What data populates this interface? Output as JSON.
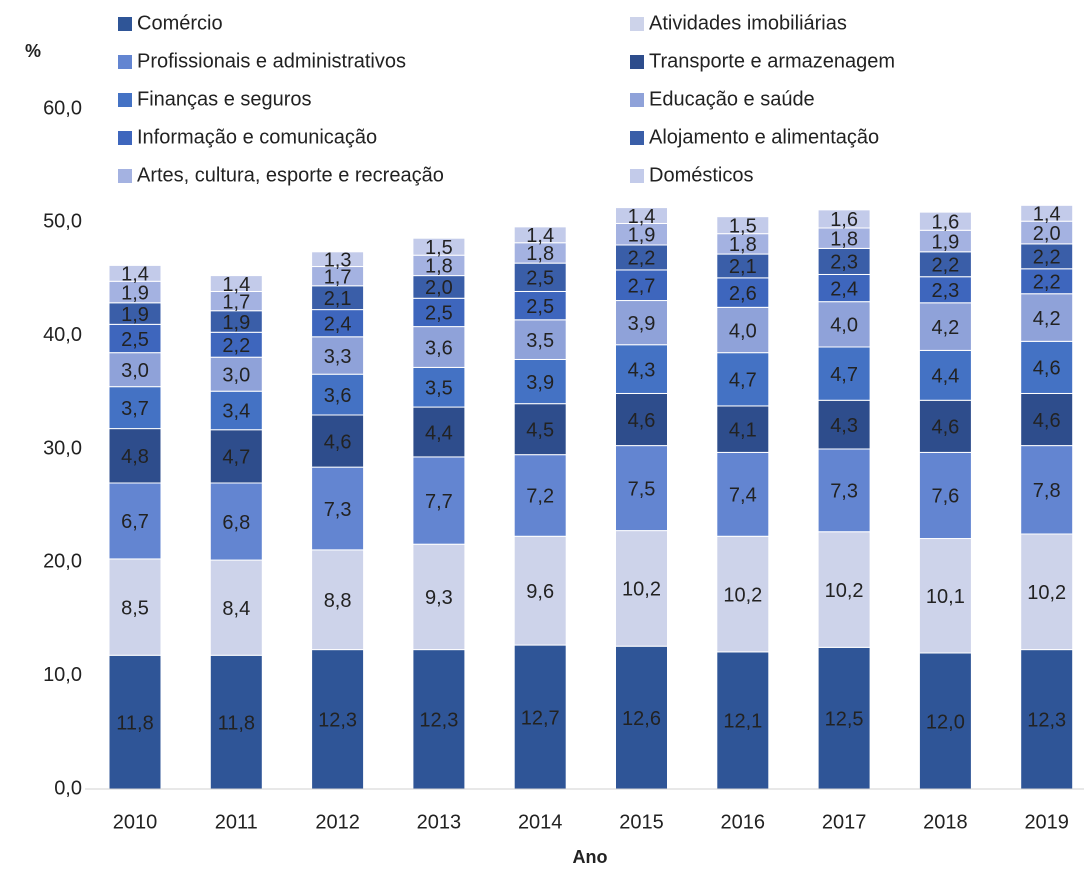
{
  "chart_data": {
    "type": "stacked_bar",
    "y_label": "%",
    "x_label": "Ano",
    "categories": [
      "2010",
      "2011",
      "2012",
      "2013",
      "2014",
      "2015",
      "2016",
      "2017",
      "2018",
      "2019"
    ],
    "ylim": [
      0,
      60
    ],
    "yticks": [
      {
        "value": 0,
        "label": "0,0"
      },
      {
        "value": 10,
        "label": "10,0"
      },
      {
        "value": 20,
        "label": "20,0"
      },
      {
        "value": 30,
        "label": "30,0"
      },
      {
        "value": 40,
        "label": "40,0"
      },
      {
        "value": 50,
        "label": "50,0"
      },
      {
        "value": 60,
        "label": "60,0"
      }
    ],
    "legend": "top",
    "series": [
      {
        "name": "Comércio",
        "color": "#2f5597",
        "values": [
          11.8,
          11.8,
          12.3,
          12.3,
          12.7,
          12.6,
          12.1,
          12.5,
          12.0,
          12.3
        ],
        "value_labels": [
          "11,8",
          "11,8",
          "12,3",
          "12,3",
          "12,7",
          "12,6",
          "12,1",
          "12,5",
          "12,0",
          "12,3"
        ]
      },
      {
        "name": "Atividades imobiliárias",
        "color": "#cdd3ea",
        "values": [
          8.5,
          8.4,
          8.8,
          9.3,
          9.6,
          10.2,
          10.2,
          10.2,
          10.1,
          10.2
        ],
        "value_labels": [
          "8,5",
          "8,4",
          "8,8",
          "9,3",
          "9,6",
          "10,2",
          "10,2",
          "10,2",
          "10,1",
          "10,2"
        ]
      },
      {
        "name": "Profissionais e administrativos",
        "color": "#6385d1",
        "values": [
          6.7,
          6.8,
          7.3,
          7.7,
          7.2,
          7.5,
          7.4,
          7.3,
          7.6,
          7.8
        ],
        "value_labels": [
          "6,7",
          "6,8",
          "7,3",
          "7,7",
          "7,2",
          "7,5",
          "7,4",
          "7,3",
          "7,6",
          "7,8"
        ]
      },
      {
        "name": "Transporte e armazenagem",
        "color": "#2e4d8c",
        "values": [
          4.8,
          4.7,
          4.6,
          4.4,
          4.5,
          4.6,
          4.1,
          4.3,
          4.6,
          4.6
        ],
        "value_labels": [
          "4,8",
          "4,7",
          "4,6",
          "4,4",
          "4,5",
          "4,6",
          "4,1",
          "4,3",
          "4,6",
          "4,6"
        ]
      },
      {
        "name": "Finanças e seguros",
        "color": "#4472c4",
        "values": [
          3.7,
          3.4,
          3.6,
          3.5,
          3.9,
          4.3,
          4.7,
          4.7,
          4.4,
          4.6
        ],
        "value_labels": [
          "3,7",
          "3,4",
          "3,6",
          "3,5",
          "3,9",
          "4,3",
          "4,7",
          "4,7",
          "4,4",
          "4,6"
        ]
      },
      {
        "name": "Educação e saúde",
        "color": "#8fa2d9",
        "values": [
          3.0,
          3.0,
          3.3,
          3.6,
          3.5,
          3.9,
          4.0,
          4.0,
          4.2,
          4.2
        ],
        "value_labels": [
          "3,0",
          "3,0",
          "3,3",
          "3,6",
          "3,5",
          "3,9",
          "4,0",
          "4,0",
          "4,2",
          "4,2"
        ]
      },
      {
        "name": "Informação e comunicação",
        "color": "#3e66bd",
        "values": [
          2.5,
          2.2,
          2.4,
          2.5,
          2.5,
          2.7,
          2.6,
          2.4,
          2.3,
          2.2
        ],
        "value_labels": [
          "2,5",
          "2,2",
          "2,4",
          "2,5",
          "2,5",
          "2,7",
          "2,6",
          "2,4",
          "2,3",
          "2,2"
        ]
      },
      {
        "name": "Alojamento e alimentação",
        "color": "#3a5ea8",
        "values": [
          1.9,
          1.9,
          2.1,
          2.0,
          2.5,
          2.2,
          2.1,
          2.3,
          2.2,
          2.2
        ],
        "value_labels": [
          "1,9",
          "1,9",
          "2,1",
          "2,0",
          "2,5",
          "2,2",
          "2,1",
          "2,3",
          "2,2",
          "2,2"
        ]
      },
      {
        "name": "Artes, cultura, esporte e recreação",
        "color": "#a4b2e1",
        "values": [
          1.9,
          1.7,
          1.7,
          1.8,
          1.8,
          1.9,
          1.8,
          1.8,
          1.9,
          2.0
        ],
        "value_labels": [
          "1,9",
          "1,7",
          "1,7",
          "1,8",
          "1,8",
          "1,9",
          "1,8",
          "1,8",
          "1,9",
          "2,0"
        ]
      },
      {
        "name": "Domésticos",
        "color": "#c3cbea",
        "values": [
          1.4,
          1.4,
          1.3,
          1.5,
          1.4,
          1.4,
          1.5,
          1.6,
          1.6,
          1.4
        ],
        "value_labels": [
          "1,4",
          "1,4",
          "1,3",
          "1,5",
          "1,4",
          "1,4",
          "1,5",
          "1,6",
          "1,6",
          "1,4"
        ]
      }
    ]
  }
}
